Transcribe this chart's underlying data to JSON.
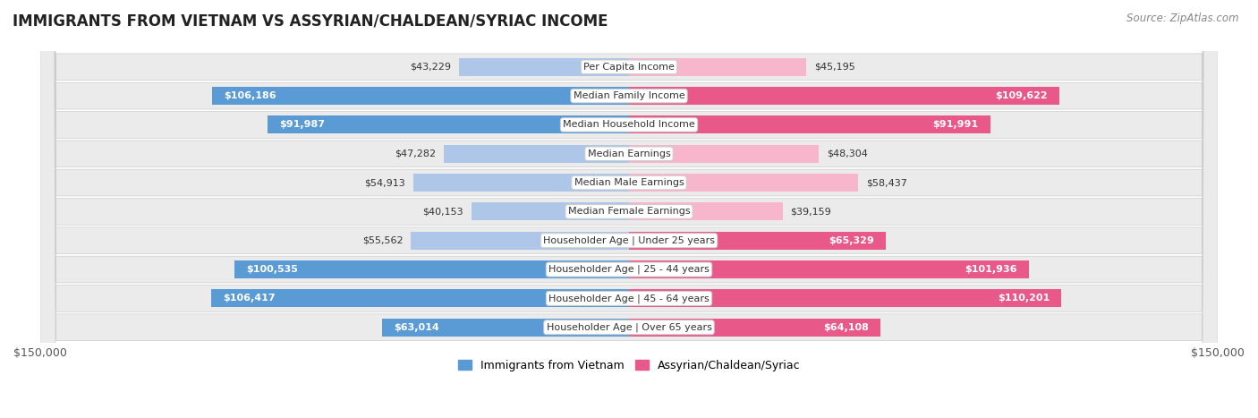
{
  "title": "IMMIGRANTS FROM VIETNAM VS ASSYRIAN/CHALDEAN/SYRIAC INCOME",
  "source": "Source: ZipAtlas.com",
  "categories": [
    "Per Capita Income",
    "Median Family Income",
    "Median Household Income",
    "Median Earnings",
    "Median Male Earnings",
    "Median Female Earnings",
    "Householder Age | Under 25 years",
    "Householder Age | 25 - 44 years",
    "Householder Age | 45 - 64 years",
    "Householder Age | Over 65 years"
  ],
  "vietnam_values": [
    43229,
    106186,
    91987,
    47282,
    54913,
    40153,
    55562,
    100535,
    106417,
    63014
  ],
  "assyrian_values": [
    45195,
    109622,
    91991,
    48304,
    58437,
    39159,
    65329,
    101936,
    110201,
    64108
  ],
  "vietnam_labels": [
    "$43,229",
    "$106,186",
    "$91,987",
    "$47,282",
    "$54,913",
    "$40,153",
    "$55,562",
    "$100,535",
    "$106,417",
    "$63,014"
  ],
  "assyrian_labels": [
    "$45,195",
    "$109,622",
    "$91,991",
    "$48,304",
    "$58,437",
    "$39,159",
    "$65,329",
    "$101,936",
    "$110,201",
    "$64,108"
  ],
  "max_value": 150000,
  "vietnam_color_light": "#aec6e8",
  "vietnam_color_dark": "#5b9bd5",
  "assyrian_color_light": "#f7b6cb",
  "assyrian_color_dark": "#e8598a",
  "threshold_for_dark": 60000,
  "row_bg": "#ebebeb",
  "row_gap": "#ffffff",
  "legend_vietnam": "Immigrants from Vietnam",
  "legend_assyrian": "Assyrian/Chaldean/Syriac",
  "center_label_bg": "#ffffff",
  "center_label_edge": "#cccccc",
  "label_fontsize": 8,
  "title_fontsize": 12,
  "source_fontsize": 8.5
}
